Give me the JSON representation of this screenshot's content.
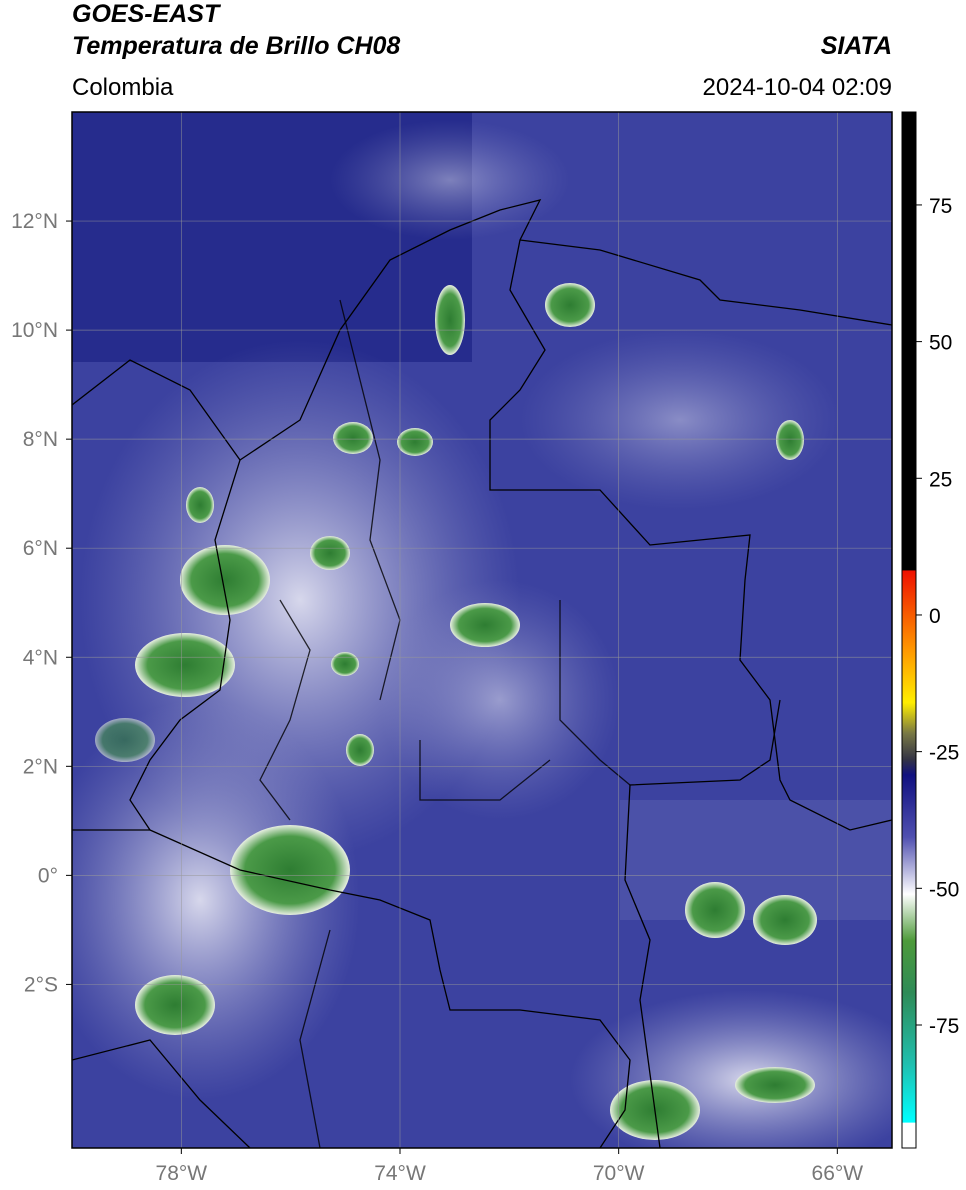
{
  "header": {
    "title": "GOES-EAST",
    "subtitle": "Temperatura de Brillo CH08",
    "source": "SIATA",
    "region": "Colombia",
    "datetime": "2024-10-04 02:09"
  },
  "map": {
    "xlim": [
      -80,
      -65
    ],
    "ylim": [
      -5,
      14
    ],
    "grid": true,
    "xticks": [
      {
        "value": -78,
        "label": "78°W"
      },
      {
        "value": -74,
        "label": "74°W"
      },
      {
        "value": -70,
        "label": "70°W"
      },
      {
        "value": -66,
        "label": "66°W"
      }
    ],
    "yticks": [
      {
        "value": 12,
        "label": "12°N"
      },
      {
        "value": 10,
        "label": "10°N"
      },
      {
        "value": 8,
        "label": "8°N"
      },
      {
        "value": 6,
        "label": "6°N"
      },
      {
        "value": 4,
        "label": "4°N"
      },
      {
        "value": 2,
        "label": "2°N"
      },
      {
        "value": 0,
        "label": "0°"
      },
      {
        "value": -2,
        "label": "2°S"
      }
    ]
  },
  "colorbar": {
    "lim": [
      -97.5,
      92
    ],
    "ticks": [
      75,
      50,
      25,
      0,
      -25,
      -50,
      -75
    ]
  }
}
